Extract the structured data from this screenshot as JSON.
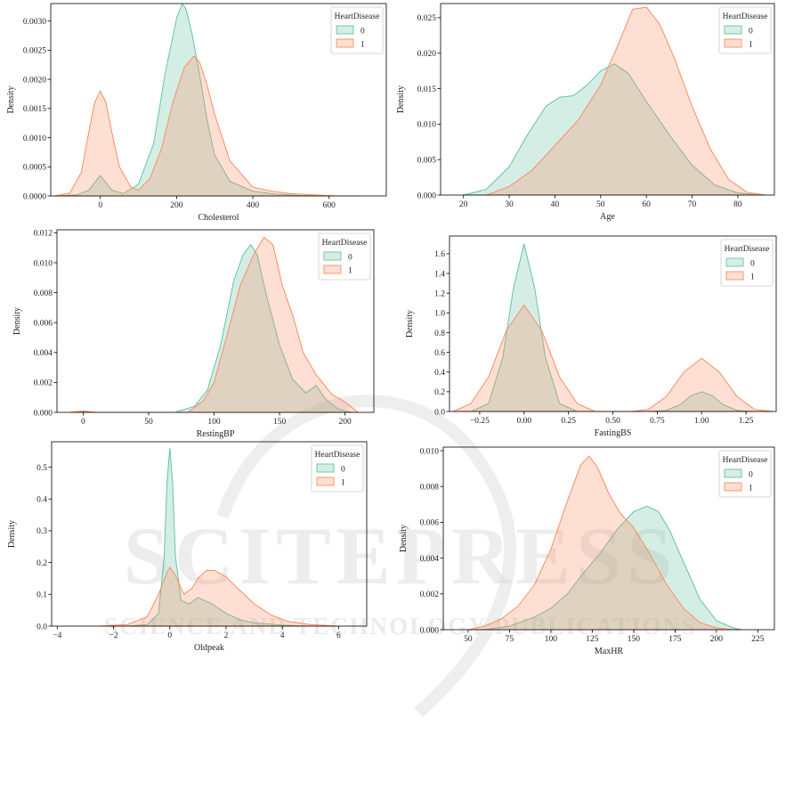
{
  "colors": {
    "series_0_fill": "#66c2a5",
    "series_1_fill": "#fc8d62",
    "overlap_tint": "#b6ad8a",
    "axis": "#000000",
    "watermark": "#d9d9d9"
  },
  "watermark": {
    "big": "SCITEPRESS",
    "small": "SCIENCE AND TECHNOLOGY PUBLICATIONS"
  },
  "chart_data": [
    {
      "type": "area",
      "xlabel": "Cholesterol",
      "ylabel": "Density",
      "xlim": [
        -130,
        750
      ],
      "ylim": [
        0,
        0.0033
      ],
      "xticks": [
        0,
        200,
        400,
        600
      ],
      "xtick_labels": [
        "0",
        "200",
        "400",
        "600"
      ],
      "yticks": [
        0,
        0.0005,
        0.001,
        0.0015,
        0.002,
        0.0025,
        0.003
      ],
      "ytick_labels": [
        "0.0000",
        "0.0005",
        "0.0010",
        "0.0015",
        "0.0020",
        "0.0025",
        "0.0030"
      ],
      "legend": {
        "title": "HeartDisease",
        "position": "top-right",
        "labels": [
          "0",
          "1"
        ]
      },
      "series": [
        {
          "name": "0",
          "x": [
            -120,
            -60,
            -30,
            0,
            30,
            60,
            100,
            140,
            170,
            200,
            215,
            225,
            240,
            260,
            280,
            300,
            340,
            400,
            460,
            520,
            600,
            680
          ],
          "values": [
            0,
            2e-05,
            0.0001,
            0.00035,
            0.0001,
            4e-05,
            0.0002,
            0.0009,
            0.0021,
            0.00305,
            0.0033,
            0.0032,
            0.0028,
            0.0021,
            0.0013,
            0.0007,
            0.00025,
            8e-05,
            3e-05,
            1e-05,
            0,
            0
          ]
        },
        {
          "name": "1",
          "x": [
            -120,
            -80,
            -50,
            -30,
            -15,
            0,
            15,
            30,
            50,
            80,
            100,
            130,
            160,
            190,
            220,
            245,
            260,
            280,
            300,
            340,
            400,
            450,
            500,
            560,
            620,
            680
          ],
          "values": [
            0,
            5e-05,
            0.0004,
            0.0011,
            0.0016,
            0.0018,
            0.0016,
            0.0011,
            0.0005,
            0.00015,
            0.0001,
            0.0003,
            0.0008,
            0.0016,
            0.0022,
            0.0024,
            0.0023,
            0.0019,
            0.0014,
            0.0006,
            0.00015,
            8e-05,
            4e-05,
            2e-05,
            0,
            0
          ]
        }
      ]
    },
    {
      "type": "area",
      "xlabel": "Age",
      "ylabel": "Density",
      "xlim": [
        15,
        88
      ],
      "ylim": [
        0,
        0.027
      ],
      "xticks": [
        20,
        30,
        40,
        50,
        60,
        70,
        80
      ],
      "xtick_labels": [
        "20",
        "30",
        "40",
        "50",
        "60",
        "70",
        "80"
      ],
      "yticks": [
        0,
        0.005,
        0.01,
        0.015,
        0.02,
        0.025
      ],
      "ytick_labels": [
        "0.000",
        "0.005",
        "0.010",
        "0.015",
        "0.020",
        "0.025"
      ],
      "legend": {
        "title": "HeartDisease",
        "position": "top-right",
        "labels": [
          "0",
          "1"
        ]
      },
      "series": [
        {
          "name": "0",
          "x": [
            20,
            25,
            30,
            34,
            38,
            41,
            44,
            47,
            50,
            53,
            56,
            60,
            65,
            70,
            75,
            80,
            85
          ],
          "values": [
            0,
            0.0008,
            0.004,
            0.0085,
            0.0125,
            0.0138,
            0.014,
            0.0155,
            0.0175,
            0.0185,
            0.0172,
            0.0132,
            0.0085,
            0.0042,
            0.0014,
            0.0003,
            0
          ]
        },
        {
          "name": "1",
          "x": [
            25,
            30,
            35,
            40,
            45,
            50,
            54,
            57,
            60,
            63,
            66,
            70,
            74,
            78,
            82,
            86
          ],
          "values": [
            0,
            0.0012,
            0.0035,
            0.007,
            0.0105,
            0.0155,
            0.0215,
            0.0262,
            0.0265,
            0.024,
            0.0195,
            0.0125,
            0.0065,
            0.0022,
            0.0004,
            0
          ]
        }
      ]
    },
    {
      "type": "area",
      "xlabel": "RestingBP",
      "ylabel": "Density",
      "xlim": [
        -20,
        222
      ],
      "ylim": [
        0,
        0.0122
      ],
      "xticks": [
        0,
        50,
        100,
        150,
        200
      ],
      "xtick_labels": [
        "0",
        "50",
        "100",
        "150",
        "200"
      ],
      "yticks": [
        0,
        0.002,
        0.004,
        0.006,
        0.008,
        0.01,
        0.012
      ],
      "ytick_labels": [
        "0.000",
        "0.002",
        "0.004",
        "0.006",
        "0.008",
        "0.010",
        "0.012"
      ],
      "legend": {
        "title": "HeartDisease",
        "position": "top-right",
        "labels": [
          "0",
          "1"
        ]
      },
      "series": [
        {
          "name": "0",
          "x": [
            -10,
            0,
            10,
            40,
            70,
            85,
            95,
            105,
            115,
            122,
            128,
            133,
            140,
            150,
            160,
            170,
            178,
            185,
            195,
            205
          ],
          "values": [
            0,
            5e-05,
            0,
            0,
            0,
            0.0004,
            0.0015,
            0.0045,
            0.0088,
            0.0105,
            0.0112,
            0.0105,
            0.0078,
            0.0045,
            0.0022,
            0.0013,
            0.0018,
            0.0009,
            0.0002,
            0
          ]
        },
        {
          "name": "1",
          "x": [
            -10,
            0,
            10,
            40,
            80,
            92,
            100,
            110,
            120,
            130,
            138,
            145,
            152,
            160,
            168,
            178,
            190,
            200,
            210
          ],
          "values": [
            0,
            0.0001,
            0,
            0,
            0,
            0.0008,
            0.002,
            0.0052,
            0.0085,
            0.0105,
            0.0117,
            0.0112,
            0.0085,
            0.0065,
            0.004,
            0.0025,
            0.0012,
            0.0007,
            0
          ]
        }
      ]
    },
    {
      "type": "area",
      "xlabel": "FastingBS",
      "ylabel": "Density",
      "xlim": [
        -0.42,
        1.42
      ],
      "ylim": [
        0,
        1.78
      ],
      "xticks": [
        -0.25,
        0,
        0.25,
        0.5,
        0.75,
        1,
        1.25
      ],
      "xtick_labels": [
        "−0.25",
        "0.00",
        "0.25",
        "0.50",
        "0.75",
        "1.00",
        "1.25"
      ],
      "yticks": [
        0,
        0.2,
        0.4,
        0.6,
        0.8,
        1.0,
        1.2,
        1.4,
        1.6
      ],
      "ytick_labels": [
        "0.0",
        "0.2",
        "0.4",
        "0.6",
        "0.8",
        "1.0",
        "1.2",
        "1.4",
        "1.6"
      ],
      "legend": {
        "title": "HeartDisease",
        "position": "top-right",
        "labels": [
          "0",
          "1"
        ]
      },
      "series": [
        {
          "name": "0",
          "x": [
            -0.3,
            -0.2,
            -0.12,
            -0.06,
            0,
            0.06,
            0.12,
            0.2,
            0.3,
            0.5,
            0.7,
            0.8,
            0.88,
            0.94,
            1.0,
            1.06,
            1.12,
            1.2,
            1.3
          ],
          "values": [
            0,
            0.08,
            0.55,
            1.25,
            1.7,
            1.25,
            0.55,
            0.08,
            0,
            0,
            0,
            0.01,
            0.07,
            0.16,
            0.2,
            0.16,
            0.07,
            0.01,
            0
          ]
        },
        {
          "name": "1",
          "x": [
            -0.4,
            -0.3,
            -0.2,
            -0.1,
            0,
            0.1,
            0.2,
            0.3,
            0.4,
            0.6,
            0.7,
            0.8,
            0.9,
            1.0,
            1.1,
            1.2,
            1.3,
            1.4
          ],
          "values": [
            0,
            0.08,
            0.35,
            0.82,
            1.08,
            0.82,
            0.35,
            0.08,
            0,
            0,
            0.02,
            0.15,
            0.4,
            0.54,
            0.4,
            0.15,
            0.02,
            0
          ]
        }
      ]
    },
    {
      "type": "area",
      "xlabel": "Oldpeak",
      "ylabel": "Density",
      "xlim": [
        -4.2,
        7
      ],
      "ylim": [
        0,
        0.58
      ],
      "xticks": [
        -4,
        -2,
        0,
        2,
        4,
        6
      ],
      "xtick_labels": [
        "−4",
        "−2",
        "0",
        "2",
        "4",
        "6"
      ],
      "yticks": [
        0,
        0.1,
        0.2,
        0.3,
        0.4,
        0.5
      ],
      "ytick_labels": [
        "0.0",
        "0.1",
        "0.2",
        "0.3",
        "0.4",
        "0.5"
      ],
      "legend": {
        "title": "HeartDisease",
        "position": "top-right",
        "labels": [
          "0",
          "1"
        ]
      },
      "series": [
        {
          "name": "0",
          "x": [
            -1.5,
            -0.8,
            -0.4,
            -0.2,
            -0.1,
            0,
            0.1,
            0.2,
            0.4,
            0.7,
            1.0,
            1.5,
            2.0,
            2.5,
            3.0,
            4.0,
            5.0
          ],
          "values": [
            0,
            0.005,
            0.04,
            0.22,
            0.45,
            0.56,
            0.45,
            0.22,
            0.08,
            0.07,
            0.09,
            0.07,
            0.04,
            0.02,
            0.01,
            0.003,
            0
          ]
        },
        {
          "name": "1",
          "x": [
            -2.5,
            -1.5,
            -0.8,
            -0.4,
            -0.1,
            0,
            0.2,
            0.5,
            0.8,
            1.0,
            1.3,
            1.6,
            2.0,
            2.4,
            3.0,
            3.6,
            4.2,
            5.0,
            6.0
          ],
          "values": [
            0,
            0.005,
            0.03,
            0.1,
            0.17,
            0.185,
            0.16,
            0.1,
            0.12,
            0.15,
            0.175,
            0.175,
            0.155,
            0.12,
            0.07,
            0.035,
            0.015,
            0.005,
            0
          ]
        }
      ]
    },
    {
      "type": "area",
      "xlabel": "MaxHR",
      "ylabel": "Density",
      "xlim": [
        35,
        235
      ],
      "ylim": [
        0,
        0.0102
      ],
      "xticks": [
        50,
        75,
        100,
        125,
        150,
        175,
        200,
        225
      ],
      "xtick_labels": [
        "50",
        "75",
        "100",
        "125",
        "150",
        "175",
        "200",
        "225"
      ],
      "yticks": [
        0,
        0.002,
        0.004,
        0.006,
        0.008,
        0.01
      ],
      "ytick_labels": [
        "0.000",
        "0.002",
        "0.004",
        "0.006",
        "0.008",
        "0.010"
      ],
      "legend": {
        "title": "HeartDisease",
        "position": "top-right",
        "labels": [
          "0",
          "1"
        ]
      },
      "series": [
        {
          "name": "0",
          "x": [
            60,
            75,
            90,
            100,
            110,
            120,
            130,
            140,
            150,
            158,
            165,
            172,
            180,
            190,
            200,
            210,
            215
          ],
          "values": [
            0,
            0.0002,
            0.0007,
            0.0012,
            0.002,
            0.0032,
            0.0043,
            0.0056,
            0.0066,
            0.0069,
            0.0066,
            0.0055,
            0.0038,
            0.0017,
            0.0005,
            0.0001,
            0
          ]
        },
        {
          "name": "1",
          "x": [
            50,
            60,
            70,
            80,
            90,
            100,
            110,
            118,
            123,
            128,
            135,
            142,
            150,
            160,
            170,
            180,
            190,
            200,
            210
          ],
          "values": [
            0,
            0.0002,
            0.0006,
            0.0013,
            0.0025,
            0.0045,
            0.0072,
            0.0092,
            0.0097,
            0.0091,
            0.0076,
            0.0065,
            0.0057,
            0.0042,
            0.0025,
            0.0012,
            0.0004,
            0.0001,
            0
          ]
        }
      ]
    }
  ]
}
